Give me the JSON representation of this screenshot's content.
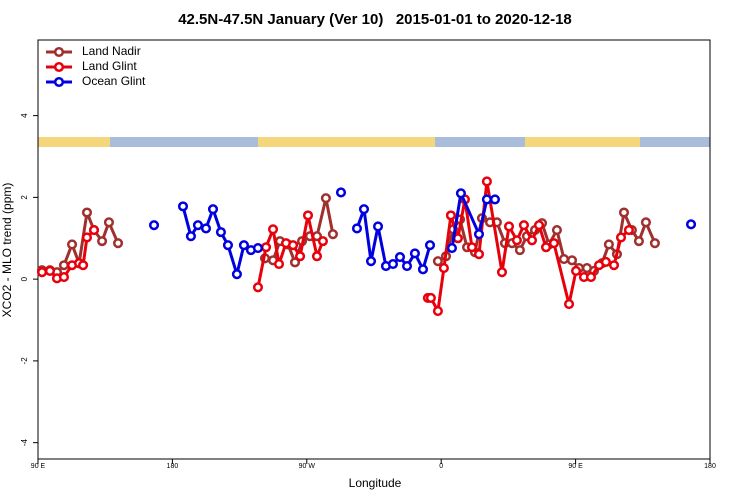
{
  "chart_data": {
    "type": "line",
    "title": "42.5N-47.5N January (Ver 10)   2015-01-01 to 2020-12-18",
    "x_label": "Longitude",
    "y_label": "XCO2 - MLO trend (ppm)",
    "xlim": [
      90,
      540
    ],
    "ylim": [
      -4.4,
      5.85
    ],
    "xticks": [
      {
        "value": 90,
        "label": "90 E"
      },
      180,
      {
        "value": 270,
        "label": "90 W"
      },
      {
        "value": 360,
        "label": "0"
      },
      {
        "value": 450,
        "label": "90 E"
      },
      {
        "value": 540,
        "label": "180"
      }
    ],
    "yticks": [
      -4,
      -2,
      0,
      2,
      4
    ],
    "legend": "top-left",
    "series": [
      {
        "name": "Land Nadir",
        "color": "#a0302e",
        "x": [
          92.7,
          98.0,
          102.7,
          107.4,
          112.8,
          117.5,
          122.8,
          127.5,
          132.9,
          137.5,
          143.6,
          null,
          242.0,
          247.4,
          252.0,
          257.4,
          262.1,
          266.8,
          272.1,
          276.8,
          282.8,
          287.5,
          null,
          357.8,
          363.2,
          367.9,
          372.6,
          377.3,
          382.6,
          387.3,
          392.7,
          397.3,
          402.7,
          407.4,
          412.7,
          417.4,
          422.8,
          427.5,
          432.2,
          437.5,
          442.2,
          447.6,
          452.3,
          457.6,
          462.3,
          467.7,
          472.3,
          477.7,
          482.4,
          487.7,
          492.4,
          497.1,
          503.1
        ],
        "values": [
          0.22,
          0.22,
          0.17,
          0.34,
          0.85,
          0.39,
          1.63,
          1.2,
          0.93,
          1.39,
          0.88,
          null,
          0.51,
          0.46,
          0.93,
          0.85,
          0.41,
          0.93,
          1.05,
          1.05,
          1.98,
          1.1,
          null,
          0.44,
          0.56,
          1.22,
          1.46,
          0.78,
          0.66,
          1.49,
          1.39,
          1.39,
          0.88,
          0.88,
          0.71,
          1.05,
          1.2,
          1.37,
          0.85,
          1.2,
          0.49,
          0.46,
          0.27,
          0.27,
          0.2,
          0.39,
          0.85,
          0.61,
          1.63,
          1.2,
          0.93,
          1.39,
          0.88
        ]
      },
      {
        "name": "Land Glint",
        "color": "#e8000b",
        "x": [
          92.7,
          98.0,
          102.7,
          107.4,
          112.8,
          117.5,
          120.2,
          122.8,
          127.5,
          null,
          237.3,
          242.7,
          247.4,
          251.4,
          256.1,
          260.8,
          265.5,
          270.8,
          276.8,
          280.8,
          null,
          351.1,
          353.1,
          357.8,
          361.8,
          366.5,
          371.2,
          375.9,
          380.6,
          385.3,
          390.6,
          400.7,
          405.4,
          410.7,
          415.4,
          420.8,
          425.5,
          430.2,
          435.5,
          445.6,
          450.3,
          455.6,
          460.3,
          465.7,
          470.3,
          475.7,
          480.4,
          485.7
        ],
        "values": [
          0.17,
          0.2,
          0.02,
          0.05,
          0.34,
          0.39,
          0.34,
          1.02,
          1.2,
          null,
          -0.2,
          0.78,
          1.22,
          0.37,
          0.88,
          0.83,
          0.56,
          1.56,
          0.56,
          0.93,
          null,
          -0.46,
          -0.46,
          -0.78,
          0.27,
          1.56,
          1.0,
          1.95,
          0.78,
          0.61,
          2.39,
          0.17,
          1.29,
          0.95,
          1.32,
          0.95,
          1.32,
          0.78,
          0.88,
          -0.61,
          0.2,
          0.05,
          0.05,
          0.34,
          0.42,
          0.34,
          1.02,
          1.2
        ]
      },
      {
        "name": "Ocean Glint",
        "color": "#0000e0",
        "x": [
          167.7,
          null,
          187.1,
          192.4,
          197.1,
          202.5,
          207.2,
          212.5,
          217.2,
          223.2,
          227.9,
          232.6,
          237.3,
          null,
          292.9,
          null,
          303.6,
          308.3,
          313.0,
          317.7,
          323.0,
          327.7,
          332.4,
          337.1,
          342.4,
          347.8,
          352.5,
          null,
          367.2,
          373.2,
          385.3,
          390.6,
          396.0,
          null,
          527.3
        ],
        "values": [
          1.32,
          null,
          1.78,
          1.05,
          1.32,
          1.24,
          1.71,
          1.15,
          0.83,
          0.12,
          0.83,
          0.71,
          0.76,
          null,
          2.12,
          null,
          1.24,
          1.71,
          0.44,
          1.29,
          0.32,
          0.37,
          0.54,
          0.32,
          0.63,
          0.24,
          0.83,
          null,
          0.76,
          2.1,
          1.1,
          1.95,
          1.95,
          null,
          1.34
        ]
      }
    ]
  }
}
